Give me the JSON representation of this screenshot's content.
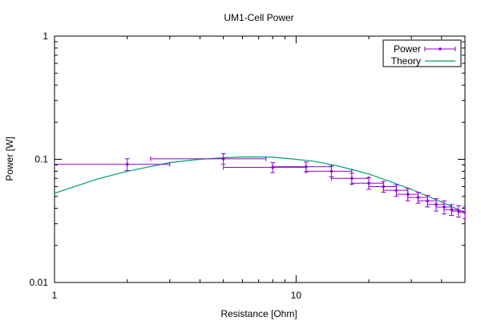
{
  "chart_data": {
    "type": "scatter",
    "title": "UM1-Cell Power",
    "xlabel": "Resistance [Ohm]",
    "ylabel": "Power [W]",
    "x_scale": "log",
    "y_scale": "log",
    "xlim": [
      1,
      50
    ],
    "ylim": [
      0.01,
      1
    ],
    "x_ticks": [
      {
        "value": 1,
        "label": "1"
      },
      {
        "value": 10,
        "label": "10"
      }
    ],
    "y_ticks": [
      {
        "value": 0.01,
        "label": "0.01"
      },
      {
        "value": 0.1,
        "label": "0.1"
      },
      {
        "value": 1,
        "label": "1"
      }
    ],
    "grid": false,
    "legend": {
      "position": "top-right",
      "entries": [
        "Power",
        "Theory"
      ]
    },
    "series": [
      {
        "name": "Power",
        "kind": "points-with-xy-errorbars",
        "color": "#9400d3",
        "points": [
          {
            "x": 2.0,
            "y": 0.091,
            "xerr": 1.0,
            "yerr": 0.01
          },
          {
            "x": 5.0,
            "y": 0.101,
            "xerr": 2.5,
            "yerr": 0.01
          },
          {
            "x": 8.0,
            "y": 0.086,
            "xerr": 3.0,
            "yerr": 0.008
          },
          {
            "x": 11.0,
            "y": 0.087,
            "xerr": 3.0,
            "yerr": 0.008
          },
          {
            "x": 14.0,
            "y": 0.08,
            "xerr": 3.0,
            "yerr": 0.008
          },
          {
            "x": 17.0,
            "y": 0.07,
            "xerr": 3.0,
            "yerr": 0.007
          },
          {
            "x": 20.0,
            "y": 0.064,
            "xerr": 3.0,
            "yerr": 0.007
          },
          {
            "x": 23.0,
            "y": 0.06,
            "xerr": 3.0,
            "yerr": 0.006
          },
          {
            "x": 26.0,
            "y": 0.056,
            "xerr": 3.0,
            "yerr": 0.006
          },
          {
            "x": 29.0,
            "y": 0.052,
            "xerr": 3.0,
            "yerr": 0.006
          },
          {
            "x": 32.0,
            "y": 0.049,
            "xerr": 3.0,
            "yerr": 0.005
          },
          {
            "x": 35.0,
            "y": 0.046,
            "xerr": 3.0,
            "yerr": 0.005
          },
          {
            "x": 38.0,
            "y": 0.043,
            "xerr": 3.0,
            "yerr": 0.005
          },
          {
            "x": 41.0,
            "y": 0.041,
            "xerr": 3.0,
            "yerr": 0.005
          },
          {
            "x": 44.0,
            "y": 0.039,
            "xerr": 3.0,
            "yerr": 0.004
          },
          {
            "x": 47.0,
            "y": 0.038,
            "xerr": 3.0,
            "yerr": 0.004
          },
          {
            "x": 50.0,
            "y": 0.037,
            "xerr": 3.0,
            "yerr": 0.004
          }
        ]
      },
      {
        "name": "Theory",
        "kind": "line",
        "color": "#009e73",
        "points": [
          {
            "x": 1.0,
            "y": 0.053
          },
          {
            "x": 1.5,
            "y": 0.069
          },
          {
            "x": 2.0,
            "y": 0.08
          },
          {
            "x": 3.0,
            "y": 0.094
          },
          {
            "x": 4.0,
            "y": 0.1
          },
          {
            "x": 5.0,
            "y": 0.103
          },
          {
            "x": 6.0,
            "y": 0.1045
          },
          {
            "x": 7.0,
            "y": 0.1045
          },
          {
            "x": 8.0,
            "y": 0.104
          },
          {
            "x": 10.0,
            "y": 0.1
          },
          {
            "x": 12.0,
            "y": 0.096
          },
          {
            "x": 15.0,
            "y": 0.088
          },
          {
            "x": 20.0,
            "y": 0.076
          },
          {
            "x": 25.0,
            "y": 0.065
          },
          {
            "x": 30.0,
            "y": 0.057
          },
          {
            "x": 40.0,
            "y": 0.045
          },
          {
            "x": 50.0,
            "y": 0.037
          }
        ]
      }
    ]
  }
}
